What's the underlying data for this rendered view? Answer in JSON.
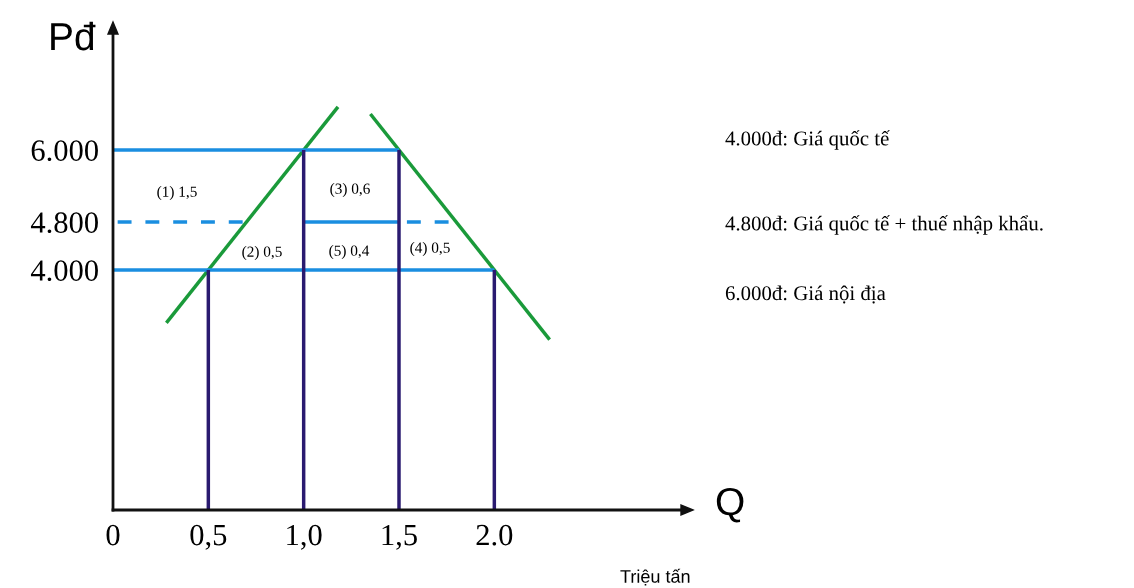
{
  "chart_data": {
    "type": "line",
    "xlabel": "Q",
    "ylabel": "Pđ",
    "xlim": [
      0,
      3.0
    ],
    "ylim": [
      0,
      8000
    ],
    "xticks": [
      {
        "value": 0,
        "label": "0"
      },
      {
        "value": 0.5,
        "label": "0,5"
      },
      {
        "value": 1.0,
        "label": "1,0"
      },
      {
        "value": 1.5,
        "label": "1,5"
      },
      {
        "value": 2.0,
        "label": "2.0"
      }
    ],
    "yticks": [
      {
        "value": 4000,
        "label": "4.000"
      },
      {
        "value": 4800,
        "label": "4.800"
      },
      {
        "value": 6000,
        "label": "6.000"
      }
    ],
    "grid": false,
    "legend": false,
    "marker": "none",
    "series": [
      {
        "color": "#1a9a3a",
        "x": [
          0.28,
          1.18
        ],
        "values": [
          3120,
          6720
        ]
      },
      {
        "color": "#1a9a3a",
        "x": [
          1.35,
          2.29
        ],
        "values": [
          6600,
          2840
        ]
      },
      {
        "color": "#1a8ee0",
        "x": [
          0,
          1.5
        ],
        "values": [
          6000,
          6000
        ]
      },
      {
        "color": "#1a8ee0",
        "x": [
          0,
          2.0
        ],
        "values": [
          4000,
          4000
        ]
      },
      {
        "color": "#1a8ee0",
        "x": [
          0,
          0.68
        ],
        "values": [
          4800,
          4800
        ],
        "line_style": "dashed"
      },
      {
        "color": "#1a8ee0",
        "x": [
          1.0,
          1.5
        ],
        "values": [
          4800,
          4800
        ]
      },
      {
        "color": "#1a8ee0",
        "x": [
          1.5,
          1.76
        ],
        "values": [
          4800,
          4800
        ],
        "line_style": "dashed"
      },
      {
        "color": "#2a1a70",
        "x": [
          0.5,
          0.5
        ],
        "values": [
          0,
          4000
        ]
      },
      {
        "color": "#2a1a70",
        "x": [
          1.0,
          1.0
        ],
        "values": [
          0,
          6000
        ]
      },
      {
        "color": "#2a1a70",
        "x": [
          1.5,
          1.5
        ],
        "values": [
          0,
          6000
        ]
      },
      {
        "color": "#2a1a70",
        "x": [
          2.0,
          2.0
        ],
        "values": [
          0,
          4000
        ]
      }
    ],
    "annotations": [
      "(1) 1,5",
      "(3) 0,6",
      "(2) 0,5",
      "(5) 0,4",
      "(4) 0,5",
      "4.000đ: Giá quốc tế",
      "4.800đ: Giá quốc tế + thuế nhập khẩu.",
      "6.000đ: Giá nội địa",
      "Triệu tấn"
    ]
  }
}
